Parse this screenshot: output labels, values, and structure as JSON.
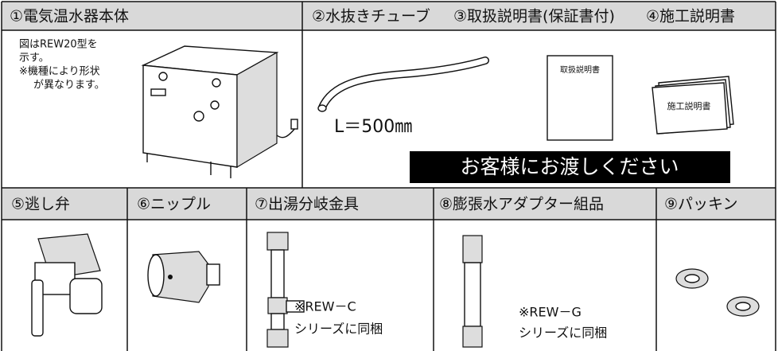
{
  "top_row": {
    "headers": [
      "①電気温水器本体",
      "②水抜きチューブ",
      "③取扱説明書(保証書付)",
      "④施工説明書"
    ]
  },
  "unit_note": [
    "図はREW20型を",
    "示す。",
    "※機種により形状",
    "が異なります。"
  ],
  "tube_length": "L＝500㎜",
  "manual_label": "取扱説明書",
  "install_label": "施工説明書",
  "banner": "お客様にお渡しください",
  "bottom_row": {
    "headers": [
      "⑤逃し弁",
      "⑥ニップル",
      "⑦出湯分岐金具",
      "⑧膨張水アダプター組品",
      "⑨パッキン"
    ]
  },
  "notes": {
    "item7": [
      "※REW－C",
      "シリーズに同梱"
    ],
    "item8": [
      "※REW－G",
      "シリーズに同梱"
    ]
  }
}
